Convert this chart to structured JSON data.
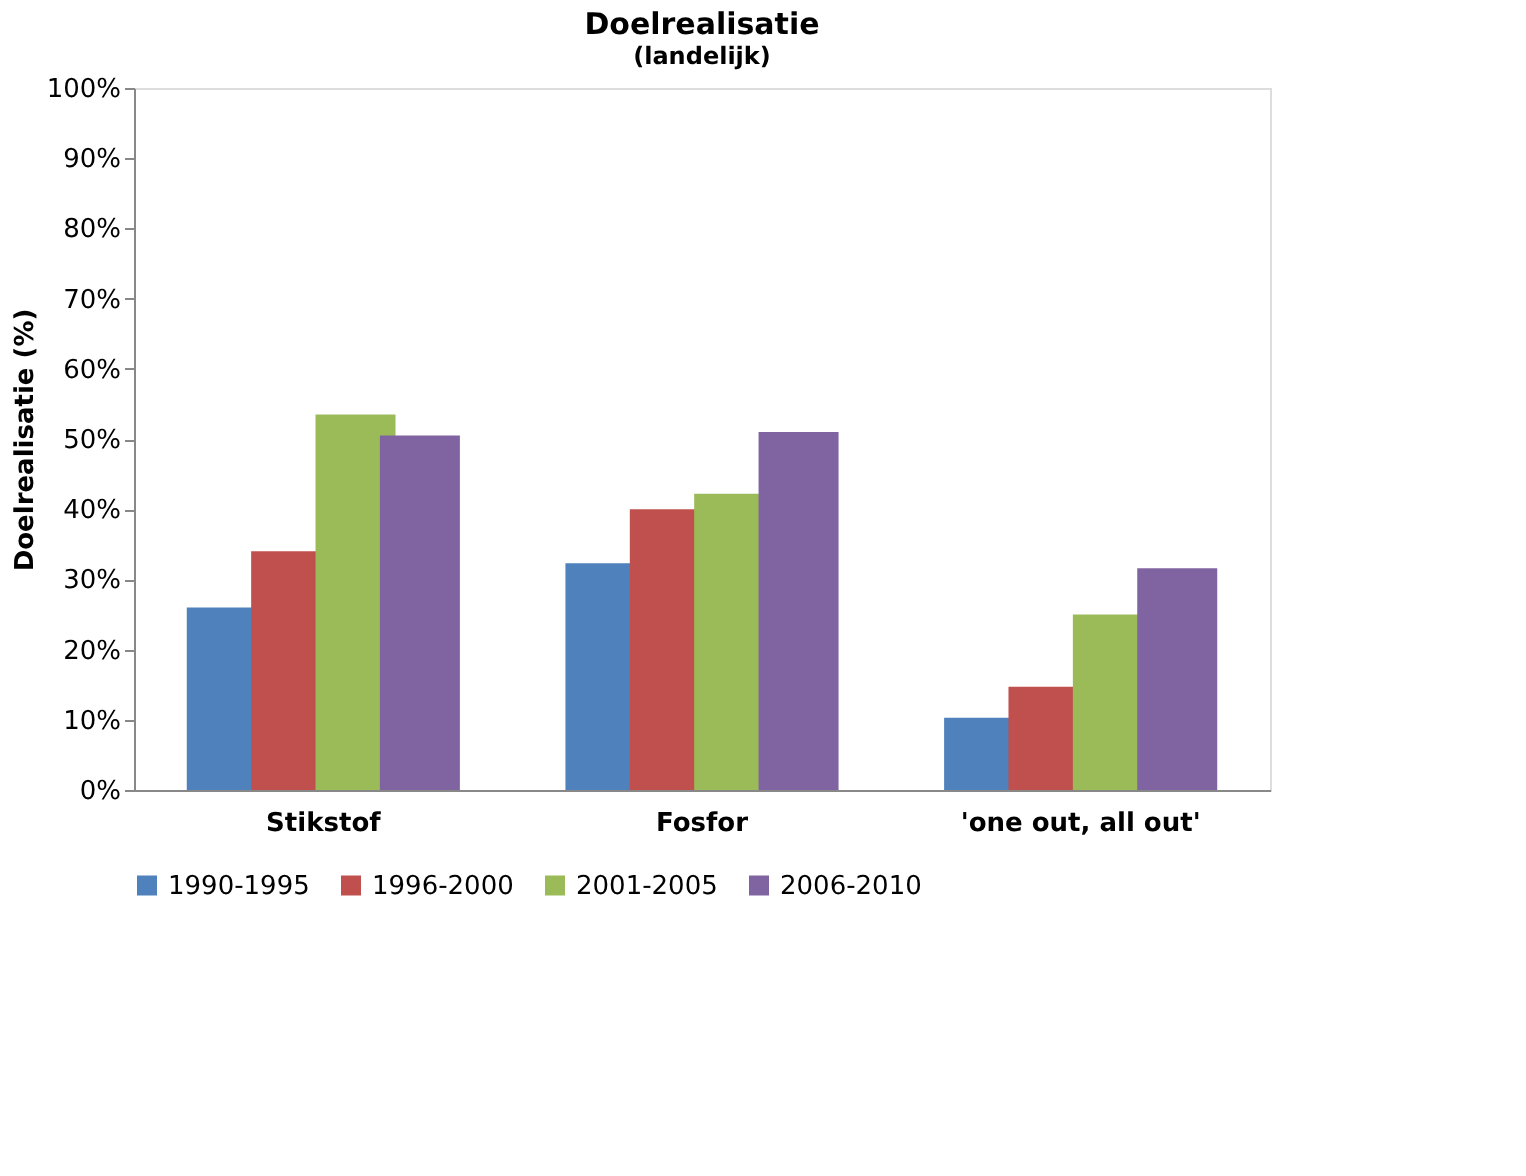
{
  "chart_data": {
    "type": "bar",
    "title": "Doelrealisatie",
    "subtitle": "(landelijk)",
    "ylabel": "Doelrealisatie (%)",
    "categories": [
      "Stikstof",
      "Fosfor",
      "'one out, all out'"
    ],
    "series": [
      {
        "name": "1990-1995",
        "color": "#4f81bd",
        "values": [
          26,
          32.3,
          10.3
        ]
      },
      {
        "name": "1996-2000",
        "color": "#c0504d",
        "values": [
          34,
          40,
          14.7
        ]
      },
      {
        "name": "2001-2005",
        "color": "#9bbb59",
        "values": [
          53.5,
          42.2,
          25
        ]
      },
      {
        "name": "2006-2010",
        "color": "#8064a2",
        "values": [
          50.5,
          51,
          31.6
        ]
      }
    ],
    "ylim": [
      0,
      100
    ],
    "yticks": [
      {
        "value": 0,
        "label": "0%"
      },
      {
        "value": 10,
        "label": "10%"
      },
      {
        "value": 20,
        "label": "20%"
      },
      {
        "value": 30,
        "label": "30%"
      },
      {
        "value": 40,
        "label": "40%"
      },
      {
        "value": 50,
        "label": "50%"
      },
      {
        "value": 60,
        "label": "60%"
      },
      {
        "value": 70,
        "label": "70%"
      },
      {
        "value": 80,
        "label": "80%"
      },
      {
        "value": 90,
        "label": "90%"
      },
      {
        "value": 100,
        "label": "100%"
      }
    ],
    "grid": false,
    "legend": "bottom"
  }
}
